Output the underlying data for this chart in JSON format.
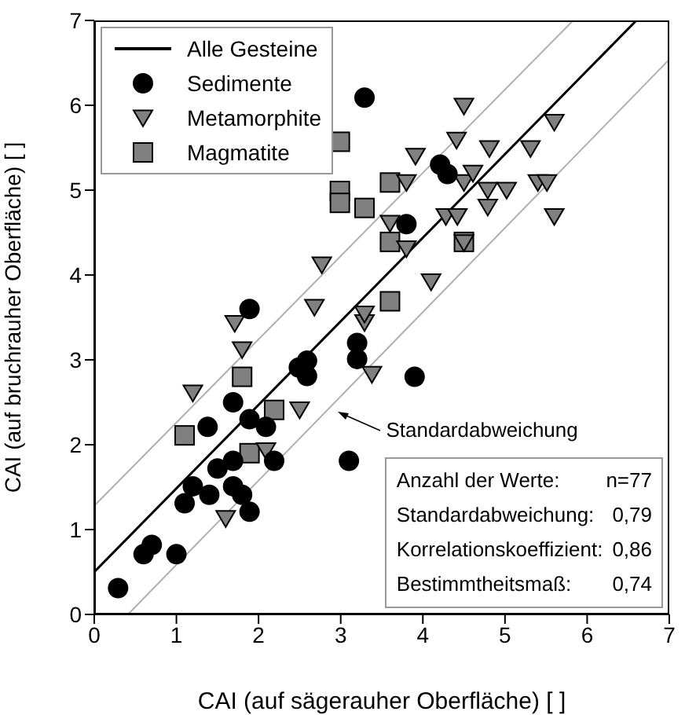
{
  "chart_data": {
    "type": "scatter",
    "xlabel": "CAI (auf sägerauher Oberfläche) [ ]",
    "ylabel": "CAI (auf bruchrauher Oberfläche) [ ]",
    "xlim": [
      0,
      7
    ],
    "ylim": [
      0,
      7
    ],
    "xticks": [
      0,
      1,
      2,
      3,
      4,
      5,
      6,
      7
    ],
    "yticks": [
      0,
      1,
      2,
      3,
      4,
      5,
      6,
      7
    ],
    "grid": false,
    "legend": "top left",
    "series": [
      {
        "name": "Alle Gesteine",
        "type": "line",
        "color": "#000000",
        "marker": "none",
        "line_style": "solid",
        "x": [
          0,
          6.6
        ],
        "values": [
          0.5,
          7
        ]
      },
      {
        "type": "line",
        "color": "#b0b0b0",
        "marker": "none",
        "line_style": "solid",
        "x": [
          0,
          5.83
        ],
        "values": [
          1.28,
          7
        ]
      },
      {
        "type": "line",
        "color": "#b0b0b0",
        "marker": "none",
        "line_style": "solid",
        "x": [
          0.41,
          7
        ],
        "values": [
          0,
          6.54
        ]
      },
      {
        "name": "Sedimente",
        "color": "#000000",
        "marker": "circle",
        "x": [
          0.29,
          0.6,
          0.7,
          1.0,
          1.1,
          1.2,
          1.4,
          1.38,
          1.5,
          1.69,
          1.69,
          1.8,
          1.89,
          1.69,
          1.89,
          2.09,
          2.19,
          2.49,
          2.59,
          2.59,
          3.2,
          3.2,
          3.1,
          1.89,
          3.29,
          4.21,
          4.3,
          3.8,
          3.9
        ],
        "values": [
          0.31,
          0.71,
          0.82,
          0.71,
          1.31,
          1.51,
          1.41,
          2.21,
          1.72,
          1.81,
          1.51,
          1.41,
          1.21,
          2.5,
          2.3,
          2.21,
          1.81,
          2.91,
          2.99,
          2.81,
          3.2,
          3.01,
          1.81,
          3.6,
          6.09,
          5.3,
          5.19,
          4.6,
          2.8
        ]
      },
      {
        "name": "Metamorphite",
        "color": "#808080",
        "marker": "triangle",
        "x": [
          1.71,
          1.8,
          1.2,
          2.5,
          2.09,
          1.6,
          3.29,
          3.38,
          2.77,
          2.68,
          3.29,
          4.5,
          4.41,
          3.91,
          4.81,
          5.31,
          5.6,
          3.8,
          4.5,
          4.61,
          4.79,
          5.02,
          5.4,
          5.51,
          4.79,
          4.28,
          4.42,
          5.6,
          3.6,
          3.8,
          4.5,
          4.1
        ],
        "values": [
          3.43,
          3.12,
          2.61,
          2.41,
          1.93,
          1.13,
          3.44,
          2.83,
          4.12,
          3.62,
          3.54,
          5.99,
          5.59,
          5.4,
          5.49,
          5.49,
          5.8,
          5.09,
          5.09,
          5.2,
          5.0,
          5.0,
          5.09,
          5.09,
          4.8,
          4.69,
          4.69,
          4.69,
          4.61,
          4.31,
          4.38,
          3.92
        ]
      },
      {
        "name": "Magmatite",
        "color": "#808080",
        "marker": "square",
        "x": [
          1.8,
          1.1,
          2.19,
          1.89,
          2.99,
          2.99,
          2.99,
          3.29,
          3.6,
          3.6,
          4.5,
          3.6
        ],
        "values": [
          2.8,
          2.11,
          2.41,
          1.9,
          5.57,
          4.99,
          4.85,
          4.79,
          5.09,
          4.39,
          4.39,
          3.69
        ]
      }
    ],
    "annotations": [
      {
        "text": "Standardabweichung",
        "x": 2.94,
        "y": 2.39
      },
      "Anzahl der Werte: n=77",
      "Standardabweichung: 0,79",
      "Korrelationskoeffizient: 0,86",
      "Bestimmtheitsmaß: 0,74"
    ]
  }
}
